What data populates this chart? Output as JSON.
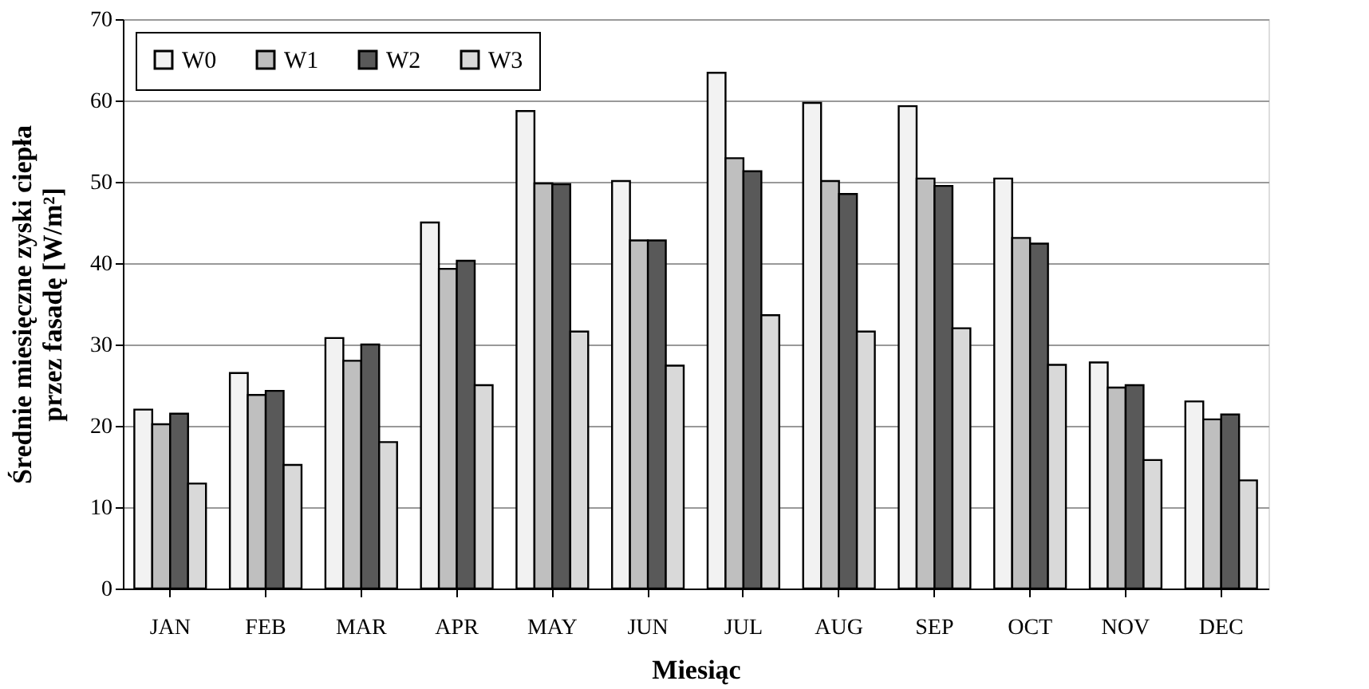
{
  "chart_data": {
    "type": "bar",
    "xlabel": "Miesiąc",
    "ylabel": "Średnie miesięczne zyski ciepła\nprzez fasadę [W/m²]",
    "categories": [
      "JAN",
      "FEB",
      "MAR",
      "APR",
      "MAY",
      "JUN",
      "JUL",
      "AUG",
      "SEP",
      "OCT",
      "NOV",
      "DEC"
    ],
    "series": [
      {
        "name": "W0",
        "color": "#f2f2f2",
        "values": [
          22,
          26.5,
          30.8,
          45,
          58.7,
          50.1,
          63.4,
          59.7,
          59.3,
          50.4,
          27.8,
          23
        ]
      },
      {
        "name": "W1",
        "color": "#bfbfbf",
        "values": [
          20.2,
          23.8,
          28,
          39.3,
          49.8,
          42.8,
          52.9,
          50.1,
          50.4,
          43.1,
          24.7,
          20.8
        ]
      },
      {
        "name": "W2",
        "color": "#595959",
        "values": [
          21.5,
          24.3,
          30,
          40.3,
          49.7,
          42.8,
          51.3,
          48.5,
          49.5,
          42.4,
          25,
          21.4
        ]
      },
      {
        "name": "W3",
        "color": "#d9d9d9",
        "values": [
          12.9,
          15.2,
          18,
          25,
          31.6,
          27.4,
          33.6,
          31.6,
          32,
          27.5,
          15.8,
          13.3
        ]
      }
    ],
    "ylim": [
      0,
      70
    ],
    "yticks": [
      0,
      10,
      20,
      30,
      40,
      50,
      60,
      70
    ],
    "grid": "y",
    "legend": "top left"
  }
}
